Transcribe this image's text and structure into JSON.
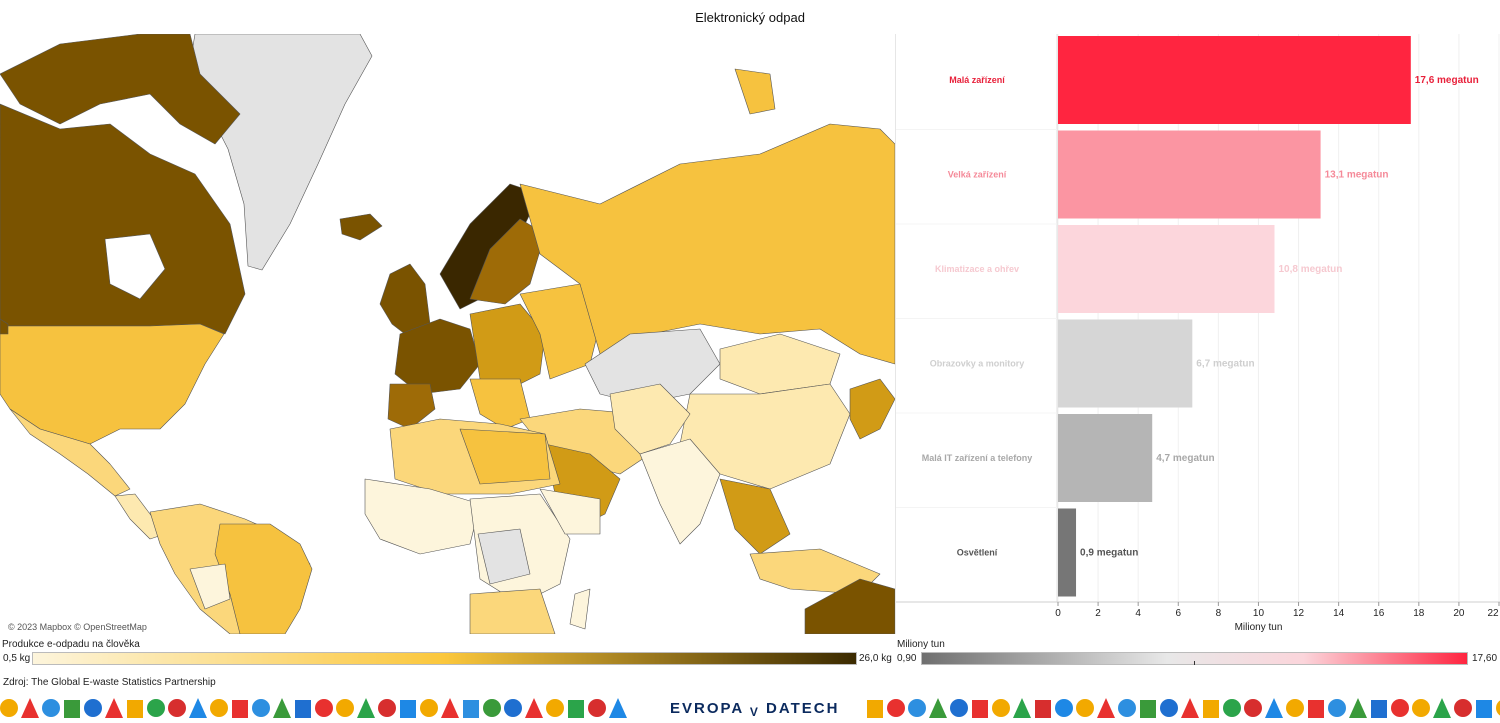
{
  "title": "Elektronický odpad",
  "map": {
    "attribution": "© 2023 Mapbox © OpenStreetMap",
    "colors": {
      "ocean": "#ffffff",
      "nodata": "#e3e3e3",
      "c1": "#fdf5dc",
      "c2": "#fde9b0",
      "c3": "#fbd77b",
      "c4": "#f6c23f",
      "c5": "#d19b16",
      "c6": "#9e6b07",
      "c7": "#7a5300",
      "c8": "#3a2700"
    }
  },
  "legend_left": {
    "title": "Produkce e-odpadu na člověka",
    "min": "0,5 kg",
    "max": "26,0 kg"
  },
  "legend_right": {
    "title": "Miliony tun",
    "min": "0,90",
    "max": "17,60"
  },
  "source": "Zdroj: The Global E-waste Statistics Partnership",
  "logo": {
    "left": "EVROPA",
    "v": "V",
    "right": "DATECH"
  },
  "chart_data": {
    "type": "bar",
    "orientation": "horizontal",
    "categories": [
      "Malá zařízení",
      "Velká zařízení",
      "Klimatizace a ohřev",
      "Obrazovky a monitory",
      "Malá IT zařízení a telefony",
      "Osvětlení"
    ],
    "values": [
      17.6,
      13.1,
      10.8,
      6.7,
      4.7,
      0.9
    ],
    "data_labels": [
      "17,6 megatun",
      "13,1 megatun",
      "10,8 megatun",
      "6,7 megatun",
      "4,7 megatun",
      "0,9 megatun"
    ],
    "bar_colors": [
      "#ff2540",
      "#fb95a2",
      "#fcd6dc",
      "#d6d6d6",
      "#b5b5b5",
      "#767676"
    ],
    "label_colors": [
      "#e8203a",
      "#f58a99",
      "#f6c9d0",
      "#cfcfcf",
      "#a8a8a8",
      "#555555"
    ],
    "xlabel": "Miliony tun",
    "xlim": [
      0,
      22
    ],
    "xticks": [
      0,
      2,
      4,
      6,
      8,
      10,
      12,
      14,
      16,
      18,
      20,
      22
    ],
    "grid": true
  }
}
